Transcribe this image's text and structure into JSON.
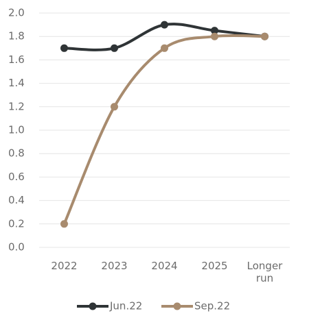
{
  "chart_data": {
    "type": "line",
    "categories": [
      "2022",
      "2023",
      "2024",
      "2025",
      "Longer run"
    ],
    "series": [
      {
        "name": "Jun.22",
        "color": "#2f3436",
        "values": [
          1.7,
          1.7,
          1.9,
          1.85,
          1.8
        ]
      },
      {
        "name": "Sep.22",
        "color": "#a88b6e",
        "values": [
          0.2,
          1.2,
          1.7,
          1.8,
          1.8
        ]
      }
    ],
    "ylim": [
      0,
      2
    ],
    "yticks": [
      {
        "value": 0,
        "label": "0.0"
      },
      0.2,
      0.4,
      0.6,
      0.8,
      {
        "value": 1,
        "label": "1.0"
      },
      1.2,
      1.4,
      1.6,
      1.8,
      {
        "value": 2,
        "label": "2.0"
      }
    ],
    "grid": true,
    "legend": "bottom"
  }
}
